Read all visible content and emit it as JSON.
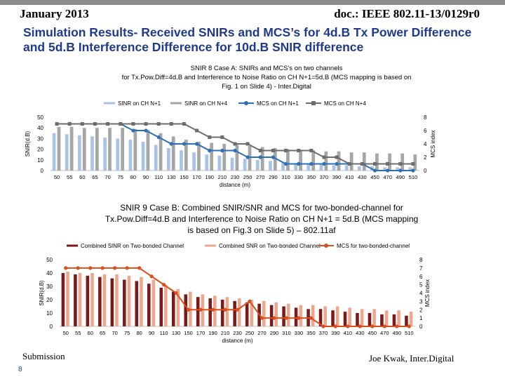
{
  "header": {
    "date": "January 2013",
    "doc": "doc.: IEEE 802.11-13/0129r0"
  },
  "slide_title": "Simulation Results- Received SNIRs and MCS’s for 4d.B Tx Power Difference and 5d.B Interference Difference for 10d.B SNIR difference",
  "footer": {
    "left": "Submission",
    "right": "Joe Kwak, Inter.Digital",
    "page": "8"
  },
  "colors": {
    "blue_light": "#a9c3e6",
    "gray": "#a6a6a6",
    "blue_line": "#2e6fb5",
    "gray_dark": "#6d6d6d",
    "red_dark": "#7b1a1a",
    "salmon": "#f0a68c",
    "orange": "#d9501e"
  },
  "chart_data": [
    {
      "type": "bar",
      "title_lines": [
        "SNIR 8 Case A: SNIRs and MCS's on two channels",
        "for Tx.Pow.Diff=4d.B and Interference to Noise Ratio on CH N+1=5d.B (MCS mapping is based on",
        "Fig. 1 on Slide 4) - Inter.Digital"
      ],
      "xlabel": "distance (m)",
      "ylabel": "SNIR(d.B)",
      "y2label": "MCS index",
      "ylim": [
        0,
        50
      ],
      "yticks": [
        0,
        10,
        20,
        30,
        40,
        50
      ],
      "y2lim": [
        0,
        8
      ],
      "y2ticks": [
        0,
        2,
        4,
        6,
        8
      ],
      "categories": [
        "50",
        "55",
        "60",
        "65",
        "70",
        "75",
        "80",
        "90",
        "110",
        "130",
        "150",
        "170",
        "190",
        "210",
        "230",
        "250",
        "270",
        "290",
        "310",
        "330",
        "350",
        "370",
        "390",
        "410",
        "430",
        "450",
        "470",
        "490",
        "510"
      ],
      "series": [
        {
          "name": "SINR on CH N+1",
          "kind": "bar",
          "axis": "left",
          "color": "#a9c3e6",
          "values": [
            35,
            34,
            33,
            32,
            31,
            30,
            29,
            27,
            24,
            21,
            19,
            17,
            15,
            14,
            12,
            11,
            10,
            9,
            8,
            7,
            6,
            6,
            5,
            5,
            4,
            4,
            3,
            3,
            3
          ]
        },
        {
          "name": "SINR on CH N+4",
          "kind": "bar",
          "axis": "left",
          "color": "#a6a6a6",
          "values": [
            41,
            41,
            40,
            40,
            40,
            40,
            39,
            38,
            35,
            32,
            29,
            27,
            26,
            25,
            24,
            23,
            22,
            21,
            20,
            19,
            19,
            18,
            18,
            17,
            17,
            16,
            16,
            16,
            15
          ]
        },
        {
          "name": "MCS on CH N+1",
          "kind": "line",
          "axis": "right",
          "color": "#2e6fb5",
          "values": [
            7,
            7,
            7,
            7,
            7,
            7,
            6,
            6,
            5,
            4,
            4,
            4,
            3,
            3,
            3,
            2,
            2,
            2,
            1,
            1,
            1,
            1,
            1,
            1,
            1,
            0,
            0,
            0,
            0
          ]
        },
        {
          "name": "MCS on CH N+4",
          "kind": "line",
          "axis": "right",
          "color": "#6d6d6d",
          "values": [
            7,
            7,
            7,
            7,
            7,
            7,
            7,
            7,
            7,
            7,
            7,
            6,
            5,
            5,
            4,
            4,
            3,
            3,
            3,
            3,
            3,
            2,
            2,
            1,
            1,
            1,
            1,
            1,
            1
          ]
        }
      ]
    },
    {
      "type": "bar",
      "title_lines": [
        "SNIR 9 Case B: Combined SNIR/SNR and MCS for two-bonded-channel for",
        "Tx.Pow.Diff=4d.B and Interference to Noise Ratio on CH N+1 = 5d.B (MCS mapping",
        "is based on Fig.3 on Slide 5) – 802.11af"
      ],
      "xlabel": "distance (m)",
      "ylabel": "SNIR(d.B)",
      "y2label": "MCS index",
      "ylim": [
        0,
        50
      ],
      "yticks": [
        0,
        10,
        20,
        30,
        40,
        50
      ],
      "y2lim": [
        0,
        8
      ],
      "y2ticks": [
        0,
        1,
        2,
        3,
        4,
        5,
        6,
        7,
        8
      ],
      "categories": [
        "50",
        "55",
        "60",
        "65",
        "70",
        "75",
        "80",
        "90",
        "110",
        "130",
        "150",
        "170",
        "190",
        "210",
        "230",
        "250",
        "270",
        "290",
        "310",
        "330",
        "350",
        "370",
        "390",
        "410",
        "430",
        "450",
        "470",
        "490",
        "510"
      ],
      "series": [
        {
          "name": "Combined SINR on Two-bonded Channel",
          "kind": "bar",
          "axis": "left",
          "color": "#7b1a1a",
          "values": [
            40,
            39,
            38,
            37,
            36,
            35,
            34,
            32,
            29,
            26,
            24,
            22,
            21,
            20,
            19,
            18,
            17,
            16,
            15,
            14,
            13,
            13,
            12,
            11,
            10,
            10,
            9,
            9,
            8
          ]
        },
        {
          "name": "Combined SNR on Two-bonded Channel",
          "kind": "bar",
          "axis": "left",
          "color": "#f0a68c",
          "values": [
            41,
            40,
            40,
            39,
            39,
            38,
            37,
            35,
            31,
            28,
            26,
            24,
            23,
            22,
            21,
            20,
            19,
            18,
            17,
            16,
            16,
            15,
            15,
            14,
            13,
            13,
            12,
            12,
            11
          ]
        },
        {
          "name": "MCS for two-bonded-channel",
          "kind": "line",
          "axis": "right",
          "color": "#d9501e",
          "values": [
            7,
            7,
            7,
            7,
            7,
            7,
            7,
            6,
            5,
            4,
            2,
            2,
            2,
            2,
            2,
            3,
            1,
            1,
            1,
            1,
            1,
            0,
            0,
            0,
            0,
            0,
            0,
            0,
            0
          ]
        }
      ]
    }
  ]
}
